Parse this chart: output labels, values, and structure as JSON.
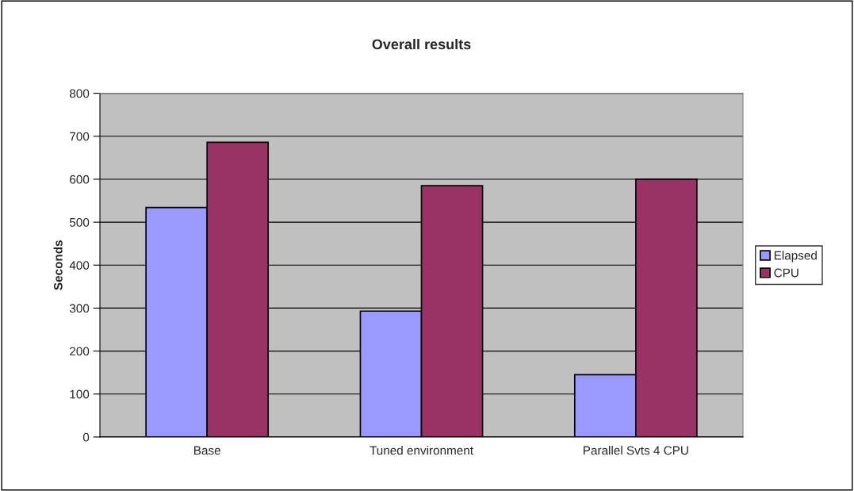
{
  "chart_data": {
    "type": "bar",
    "title": "Overall results",
    "ylabel": "Seconds",
    "categories": [
      "Base",
      "Tuned environment",
      "Parallel Svts 4 CPU"
    ],
    "series": [
      {
        "name": "Elapsed",
        "color": "#9999ff",
        "values": [
          534,
          293,
          145
        ]
      },
      {
        "name": "CPU",
        "color": "#993366",
        "values": [
          686,
          585,
          600
        ]
      }
    ],
    "ylim": [
      0,
      800
    ],
    "yticks": [
      0,
      100,
      200,
      300,
      400,
      500,
      600,
      700,
      800
    ],
    "grid": "y",
    "legend": "right"
  }
}
